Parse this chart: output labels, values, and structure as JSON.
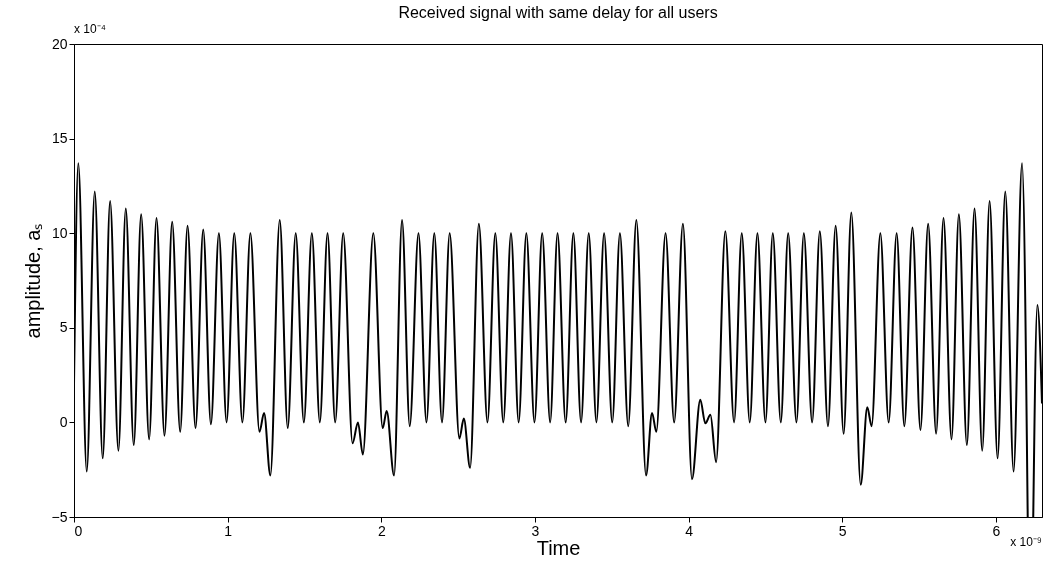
{
  "chart_data": {
    "type": "line",
    "title": "Received signal with same delay for all users",
    "xlabel": "Time",
    "ylabel": "amplitude, aₛ",
    "annotations": [
      "x 10⁻⁴",
      "x 10⁻⁹"
    ],
    "xlim": [
      0,
      6.3
    ],
    "xticks": [
      0,
      1,
      2,
      3,
      4,
      5,
      6
    ],
    "ylim": [
      -5,
      20
    ],
    "yticks": [
      -5,
      0,
      5,
      10,
      15,
      20
    ],
    "grid": false,
    "line_style": "solid",
    "marker": "none",
    "series": [
      {
        "color": "#000000",
        "x": [
          0,
          0.028,
          0.083,
          0.135,
          0.187,
          0.235,
          0.289,
          0.337,
          0.389,
          0.437,
          0.489,
          0.537,
          0.589,
          0.639,
          0.691,
          0.739,
          0.791,
          0.841,
          0.891,
          0.943,
          0.993,
          1.043,
          1.096,
          1.148,
          1.207,
          1.237,
          1.278,
          1.339,
          1.391,
          1.443,
          1.496,
          1.548,
          1.6,
          1.65,
          1.7,
          1.752,
          1.813,
          1.848,
          1.88,
          1.948,
          2.009,
          2.035,
          2.083,
          2.135,
          2.185,
          2.242,
          2.294,
          2.345,
          2.395,
          2.445,
          2.508,
          2.537,
          2.578,
          2.635,
          2.691,
          2.742,
          2.794,
          2.844,
          2.894,
          2.944,
          2.997,
          3.047,
          3.099,
          3.147,
          3.2,
          3.25,
          3.3,
          3.35,
          3.4,
          3.45,
          3.503,
          3.553,
          3.607,
          3.66,
          3.723,
          3.762,
          3.79,
          3.85,
          3.906,
          3.963,
          4.022,
          4.076,
          4.109,
          4.142,
          4.179,
          4.239,
          4.296,
          4.346,
          4.398,
          4.448,
          4.5,
          4.548,
          4.6,
          4.648,
          4.702,
          4.75,
          4.804,
          4.854,
          4.907,
          4.957,
          5.009,
          5.059,
          5.12,
          5.163,
          5.191,
          5.248,
          5.302,
          5.354,
          5.404,
          5.457,
          5.509,
          5.559,
          5.611,
          5.659,
          5.711,
          5.759,
          5.811,
          5.861,
          5.911,
          5.959,
          6.011,
          6.061,
          6.115,
          6.17,
          6.207,
          6.225,
          6.243,
          6.27,
          6.3
        ],
        "values": [
          2,
          13.7,
          -2.6,
          12.2,
          -1.9,
          11.7,
          -1.5,
          11.3,
          -1.2,
          11.0,
          -0.9,
          10.8,
          -0.7,
          10.6,
          -0.5,
          10.4,
          -0.3,
          10.2,
          -0.1,
          10.0,
          0,
          10.0,
          0,
          10.0,
          -0.5,
          0.5,
          -2.8,
          10.7,
          -0.3,
          10.0,
          0,
          10.0,
          0,
          10.0,
          0,
          10.0,
          -1.1,
          0,
          -1.7,
          10.0,
          -0.3,
          0.6,
          -2.8,
          10.7,
          -0.2,
          10.0,
          0,
          10.0,
          0,
          10.0,
          -0.85,
          0.2,
          -2.4,
          10.5,
          0,
          10.0,
          0,
          10.0,
          0,
          10.0,
          0,
          10.0,
          0,
          10.0,
          0,
          10.0,
          0,
          10.0,
          0,
          10.0,
          0,
          10.0,
          -0.2,
          10.7,
          -2.8,
          0.5,
          -0.5,
          10.0,
          0,
          10.5,
          -3.0,
          1.2,
          -0.05,
          0.4,
          -2.1,
          10.1,
          0,
          10.0,
          0,
          10.0,
          0,
          10.0,
          0,
          10.0,
          0,
          10.0,
          0,
          10.1,
          -0.2,
          10.4,
          -0.6,
          11.1,
          -3.3,
          0.8,
          -0.2,
          10.0,
          0,
          10.0,
          -0.2,
          10.3,
          -0.4,
          10.5,
          -0.6,
          10.8,
          -0.9,
          11.0,
          -1.2,
          11.3,
          -1.5,
          11.7,
          -1.9,
          12.2,
          -2.6,
          13.7,
          -5,
          null,
          -5,
          6.2,
          1
        ]
      }
    ]
  }
}
